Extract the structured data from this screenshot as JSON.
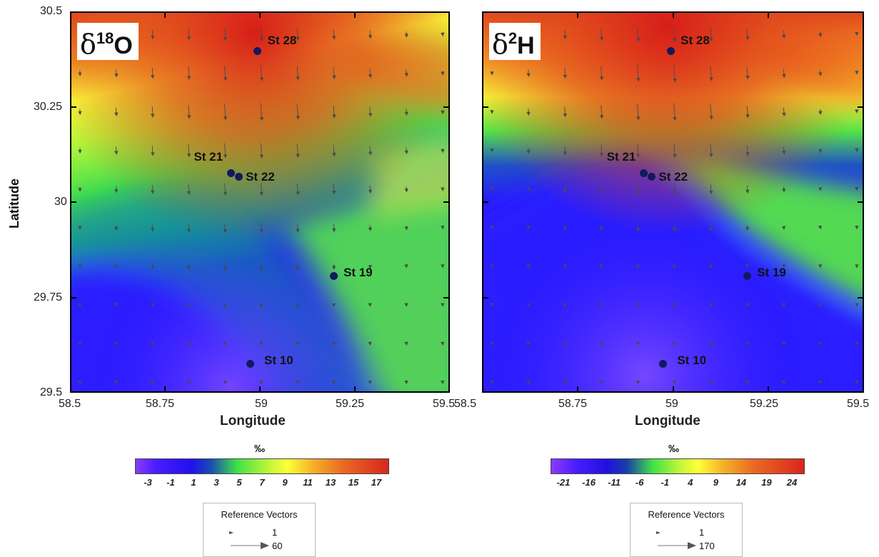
{
  "y_axis_label": "Latitude",
  "x_axis_label": "Longitude",
  "x_ticks": [
    "58.5",
    "58.75",
    "59",
    "59.25",
    "59.5"
  ],
  "y_ticks": [
    "30.5",
    "30.25",
    "30",
    "29.75",
    "29.5"
  ],
  "panels": [
    {
      "title_prefix": "δ",
      "title_sup": "18",
      "title_element": "O",
      "unit": "‰",
      "colorbar_ticks": [
        "-3",
        "-1",
        "1",
        "3",
        "5",
        "7",
        "9",
        "11",
        "13",
        "15",
        "17"
      ],
      "reference_vectors": {
        "title": "Reference Vectors",
        "small": "1",
        "large": "60"
      },
      "stations": [
        {
          "label": "St 28",
          "lon": 58.99,
          "lat": 30.4
        },
        {
          "label": "St 21",
          "lon": 58.92,
          "lat": 30.08
        },
        {
          "label": "St 22",
          "lon": 58.94,
          "lat": 30.07
        },
        {
          "label": "St 19",
          "lon": 59.19,
          "lat": 29.81
        },
        {
          "label": "St 10",
          "lon": 58.97,
          "lat": 29.58
        }
      ]
    },
    {
      "title_prefix": "δ",
      "title_sup": "2",
      "title_element": "H",
      "unit": "‰",
      "colorbar_ticks": [
        "-21",
        "-16",
        "-11",
        "-6",
        "-1",
        "4",
        "9",
        "14",
        "19",
        "24"
      ],
      "reference_vectors": {
        "title": "Reference Vectors",
        "small": "1",
        "large": "170"
      },
      "stations": [
        {
          "label": "St 28",
          "lon": 58.99,
          "lat": 30.4
        },
        {
          "label": "St 21",
          "lon": 58.92,
          "lat": 30.08
        },
        {
          "label": "St 22",
          "lon": 58.94,
          "lat": 30.07
        },
        {
          "label": "St 19",
          "lon": 59.19,
          "lat": 29.81
        },
        {
          "label": "St 10",
          "lon": 58.97,
          "lat": 29.58
        }
      ]
    }
  ],
  "colors": {
    "station_dot": "#121a5c",
    "arrow": "#4a4a4a",
    "scale": [
      "#8a3cff",
      "#2a1cff",
      "#1a4fb0",
      "#3fe04a",
      "#b8f53a",
      "#ffff3a",
      "#f5b12a",
      "#ea6a22",
      "#d8261e"
    ]
  }
}
